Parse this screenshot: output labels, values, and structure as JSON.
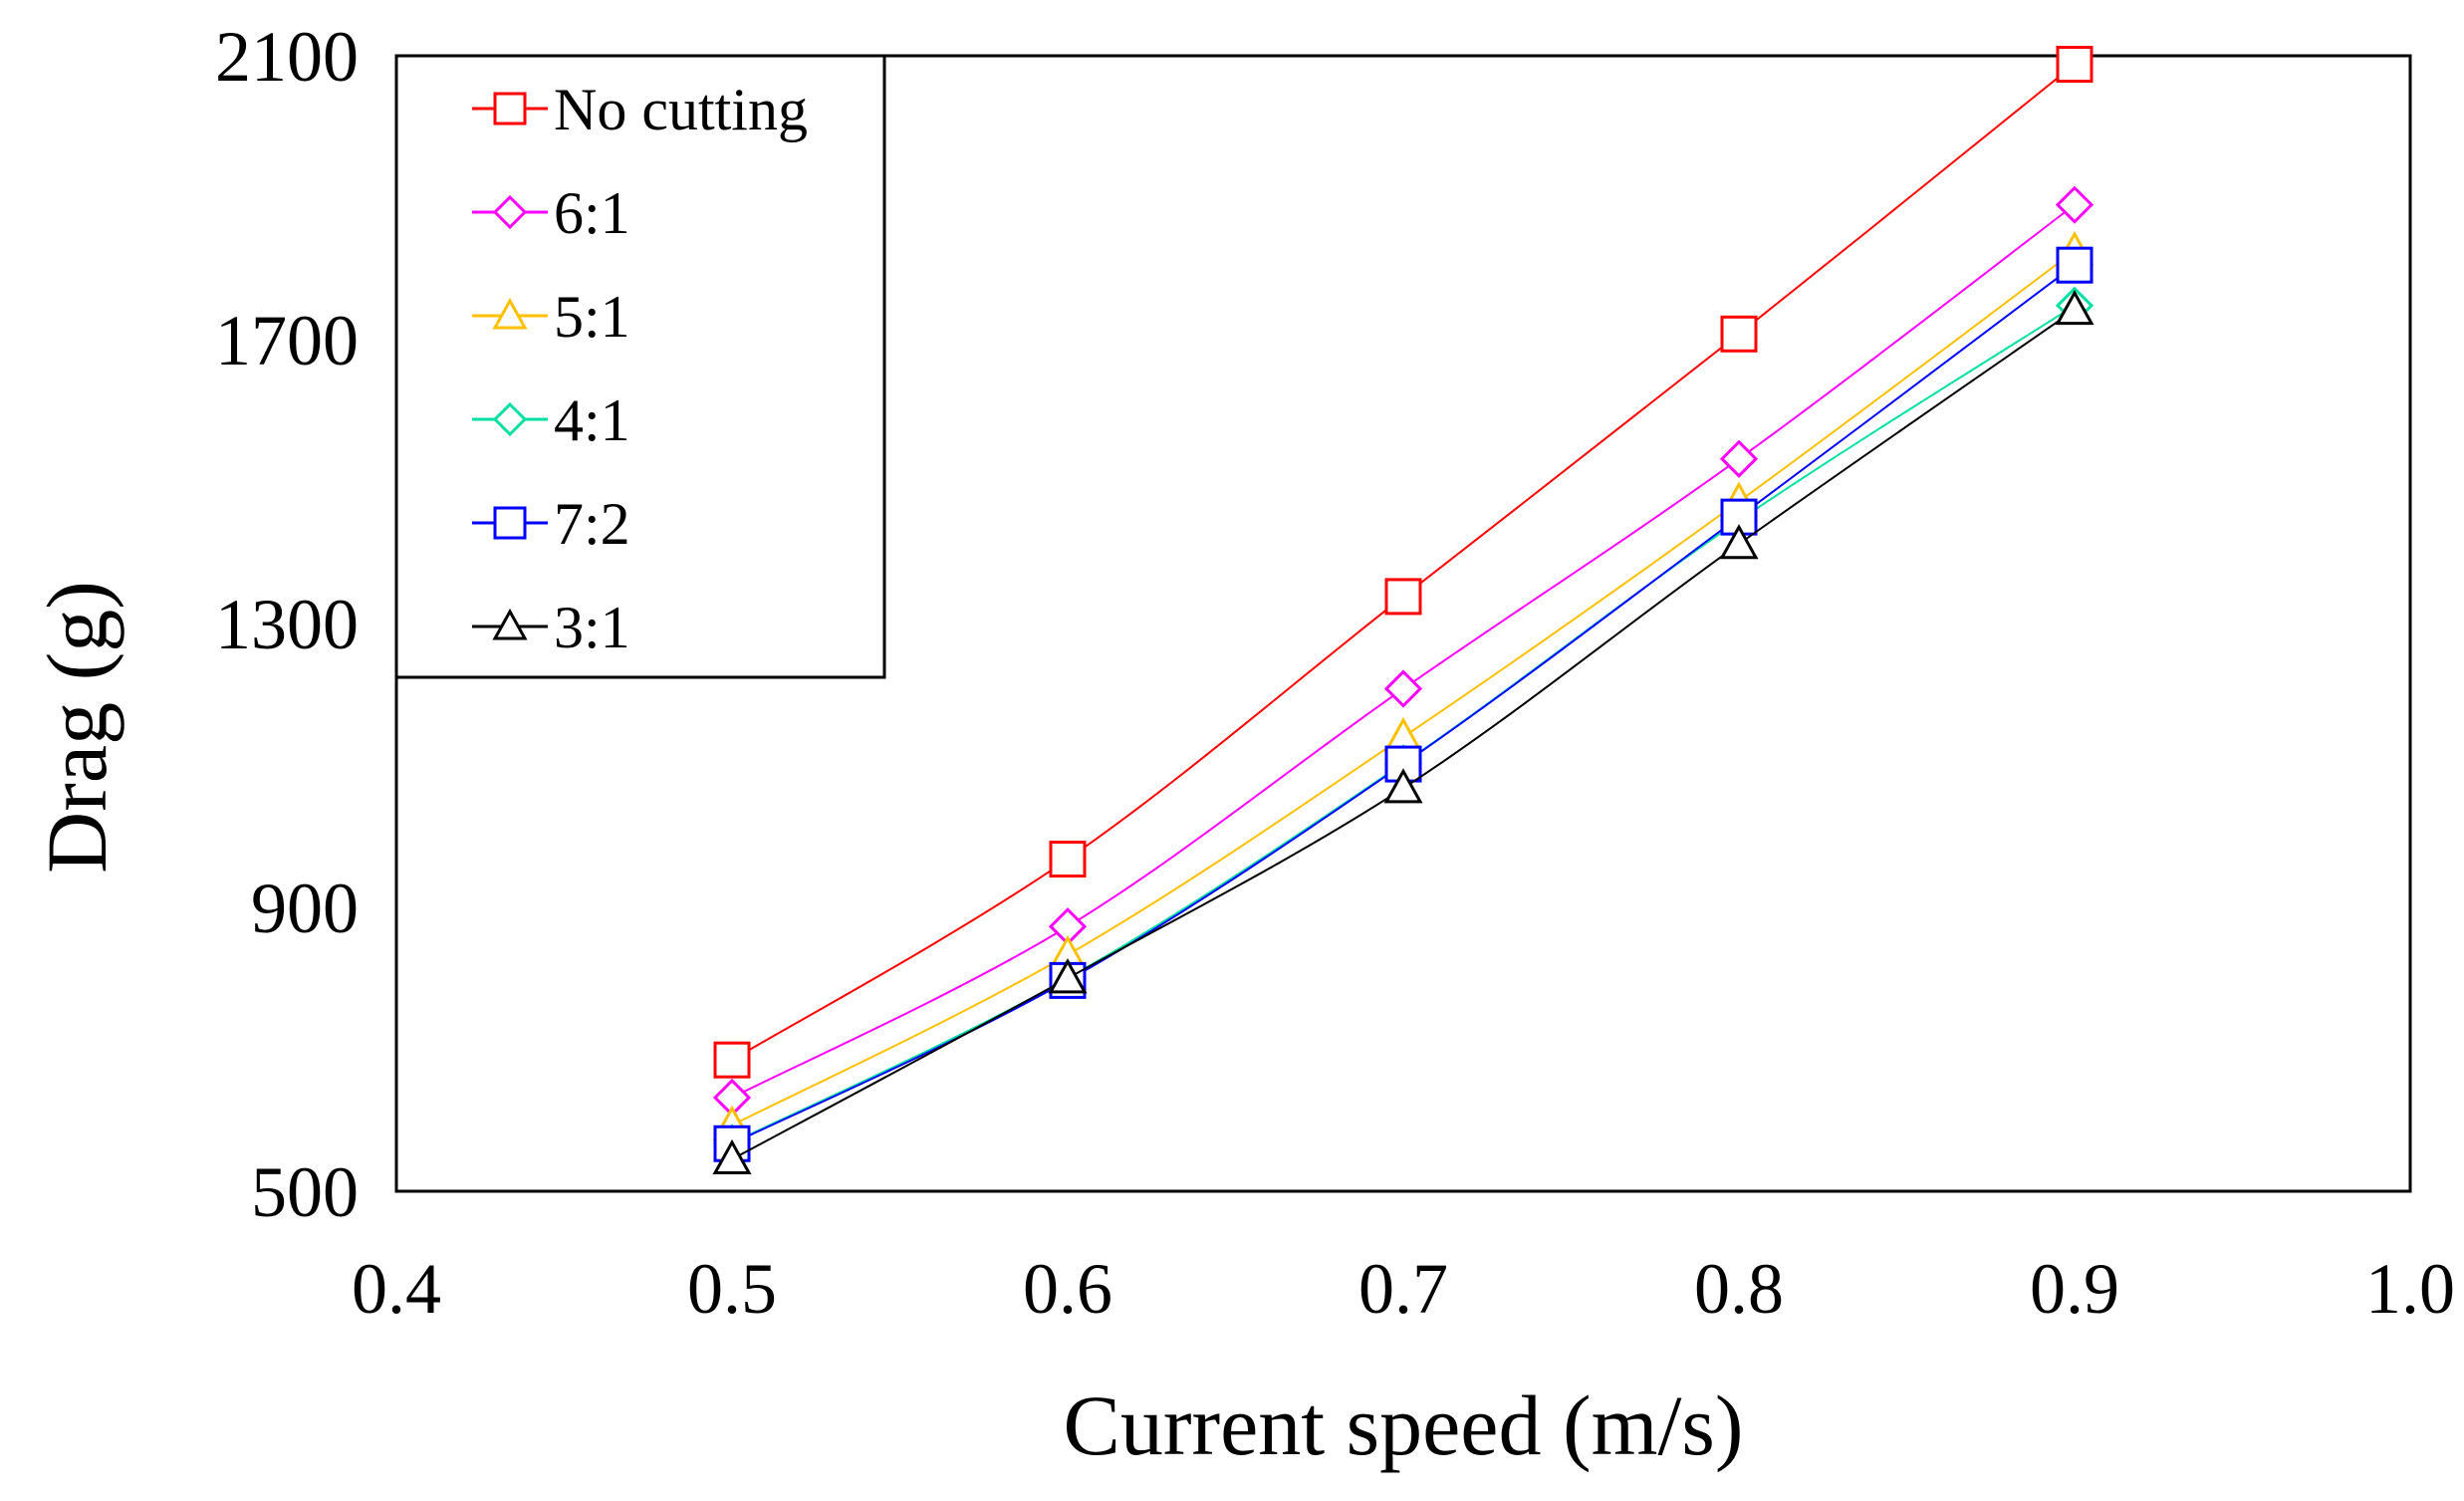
{
  "chart_data": {
    "type": "line",
    "xlabel": "Current speed (m/s)",
    "ylabel": "Drag (g)",
    "xlim": [
      0.4,
      1.0
    ],
    "ylim": [
      500,
      2100
    ],
    "xticks": [
      "0.4",
      "0.5",
      "0.6",
      "0.7",
      "0.8",
      "0.9",
      "1.0"
    ],
    "yticks": [
      "500",
      "900",
      "1300",
      "1700",
      "2100"
    ],
    "grid": false,
    "legend_position": "top-left",
    "x": [
      0.5,
      0.6,
      0.7,
      0.8,
      0.9
    ],
    "series": [
      {
        "name": "No cutting",
        "values": [
          685,
          968,
          1338,
          1708,
          2088
        ],
        "color": "#ff0000",
        "marker": "square"
      },
      {
        "name": "6:1",
        "values": [
          632,
          873,
          1208,
          1532,
          1890
        ],
        "color": "#ff00ff",
        "marker": "diamond"
      },
      {
        "name": "5:1",
        "values": [
          593,
          833,
          1140,
          1472,
          1825
        ],
        "color": "#ffc000",
        "marker": "triangle"
      },
      {
        "name": "4:1",
        "values": [
          568,
          800,
          1103,
          1445,
          1748
        ],
        "color": "#00e0a0",
        "marker": "diamond"
      },
      {
        "name": "7:2",
        "values": [
          567,
          797,
          1102,
          1450,
          1805
        ],
        "color": "#0000ff",
        "marker": "square"
      },
      {
        "name": "3:1",
        "values": [
          545,
          800,
          1068,
          1412,
          1742
        ],
        "color": "#000000",
        "marker": "triangle"
      }
    ]
  }
}
